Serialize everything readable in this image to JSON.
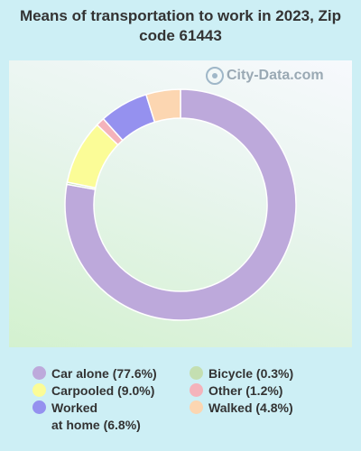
{
  "title": "Means of transportation to work in 2023, Zip code 61443",
  "watermark": "City-Data.com",
  "chart_data": {
    "type": "pie",
    "title": "Means of transportation to work in 2023, Zip code 61443",
    "slices": [
      {
        "label": "Car alone",
        "value": 77.6,
        "display": "Car alone (77.6%)",
        "color": "#bda9db"
      },
      {
        "label": "Carpooled",
        "value": 9.0,
        "display": "Carpooled (9.0%)",
        "color": "#fbfc97"
      },
      {
        "label": "Worked at home",
        "value": 6.8,
        "display_line1": "Worked",
        "display_line2": "at home (6.8%)",
        "color": "#9591ef"
      },
      {
        "label": "Bicycle",
        "value": 0.3,
        "display": "Bicycle (0.3%)",
        "color": "#c4dfb1"
      },
      {
        "label": "Other",
        "value": 1.2,
        "display": "Other (1.2%)",
        "color": "#f4b3bb"
      },
      {
        "label": "Walked",
        "value": 4.8,
        "display": "Walked (4.8%)",
        "color": "#fcd6b1"
      }
    ],
    "slice_order": [
      "Car alone",
      "Bicycle",
      "Carpooled",
      "Other",
      "Worked at home",
      "Walked"
    ]
  }
}
